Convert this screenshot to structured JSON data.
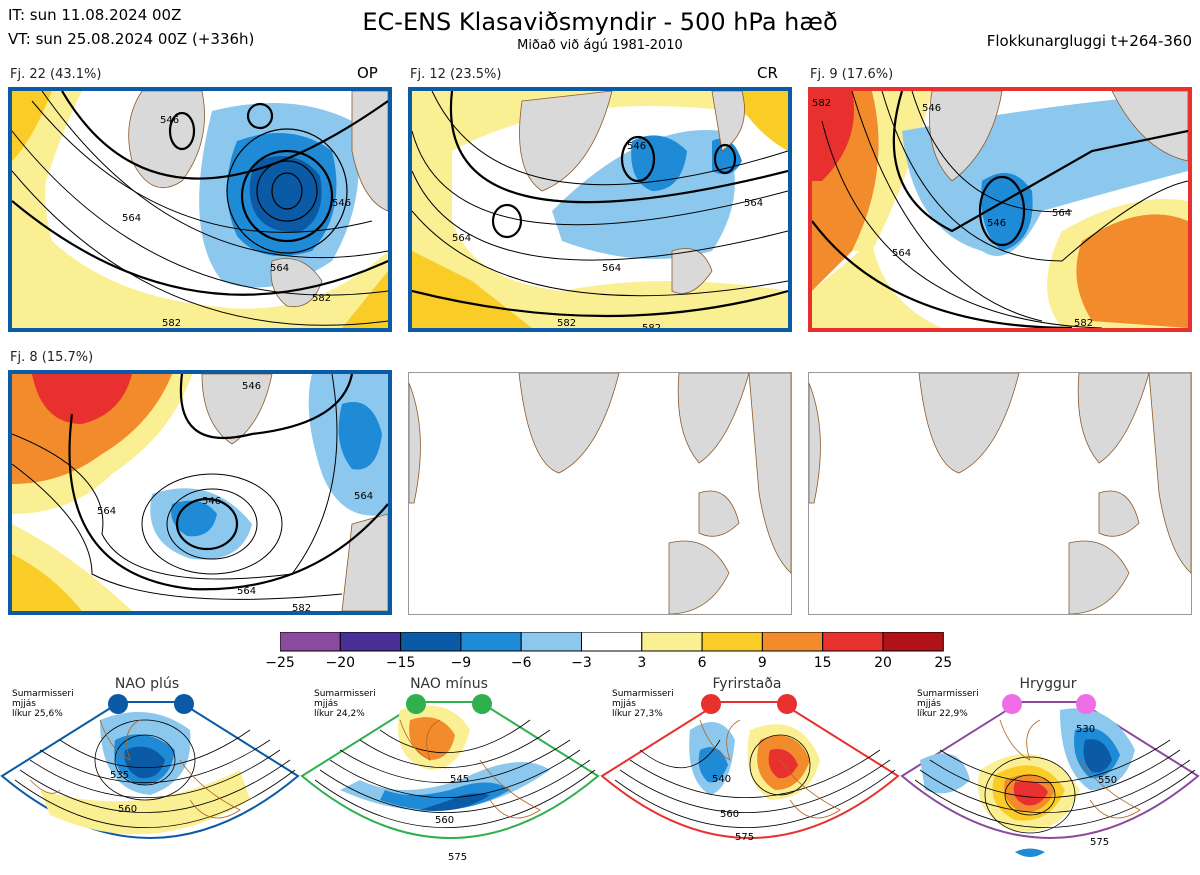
{
  "header": {
    "it_line": "IT: sun 11.08.2024 00Z",
    "vt_line": "VT: sun 25.08.2024 00Z  (+336h)",
    "title": "EC-ENS Klasaviðsmyndir - 500 hPa hæð",
    "subtitle": "Miðað við ágú 1981-2010",
    "window": "Flokkunargluggi t+264-360"
  },
  "panels": [
    {
      "label": "Fj. 22 (43.1%)",
      "tag": "OP",
      "border": "#0b5aa5",
      "contours": [
        "546",
        "564",
        "582",
        "546",
        "564",
        "582"
      ]
    },
    {
      "label": "Fj. 12 (23.5%)",
      "tag": "CR",
      "border": "#0b5aa5",
      "contours": [
        "546",
        "564",
        "564",
        "582",
        "564",
        "582"
      ]
    },
    {
      "label": "Fj. 9 (17.6%)",
      "tag": "",
      "border": "#e8312f",
      "contours": [
        "582",
        "546",
        "564",
        "546",
        "564",
        "582"
      ]
    },
    {
      "label": "Fj. 8 (15.7%)",
      "tag": "",
      "border": "#0b5aa5",
      "contours": [
        "564",
        "546",
        "564",
        "582",
        "546",
        "564"
      ]
    }
  ],
  "colorbar": {
    "colors": [
      "#8c4a9e",
      "#4a2f96",
      "#0b5aa5",
      "#1f8ad6",
      "#8cc7ee",
      "#ffffff",
      "#fbef93",
      "#f9cc28",
      "#f28b2c",
      "#e8312f",
      "#b01217"
    ],
    "ticks": [
      "−25",
      "−20",
      "−15",
      "−9",
      "−6",
      "−3",
      "3",
      "6",
      "9",
      "15",
      "20",
      "25"
    ]
  },
  "regimes": [
    {
      "name": "NAO plús",
      "color": "#0b5aa5",
      "desc": [
        "Sumarmisseri",
        "mjjás",
        "líkur 25,6%"
      ],
      "contours": [
        "535",
        "560"
      ]
    },
    {
      "name": "NAO mínus",
      "color": "#2fb04c",
      "desc": [
        "Sumarmisseri",
        "mjjás",
        "líkur 24,2%"
      ],
      "contours": [
        "545",
        "560",
        "575"
      ]
    },
    {
      "name": "Fyrirstaða",
      "color": "#e8312f",
      "desc": [
        "Sumarmisseri",
        "mjjás",
        "líkur 27,3%"
      ],
      "contours": [
        "540",
        "560",
        "575"
      ]
    },
    {
      "name": "Hryggur",
      "color": "#ef6ee8",
      "desc": [
        "Sumarmisseri",
        "mjjás",
        "líkur 22,9%"
      ],
      "contours": [
        "530",
        "550",
        "575"
      ]
    }
  ]
}
